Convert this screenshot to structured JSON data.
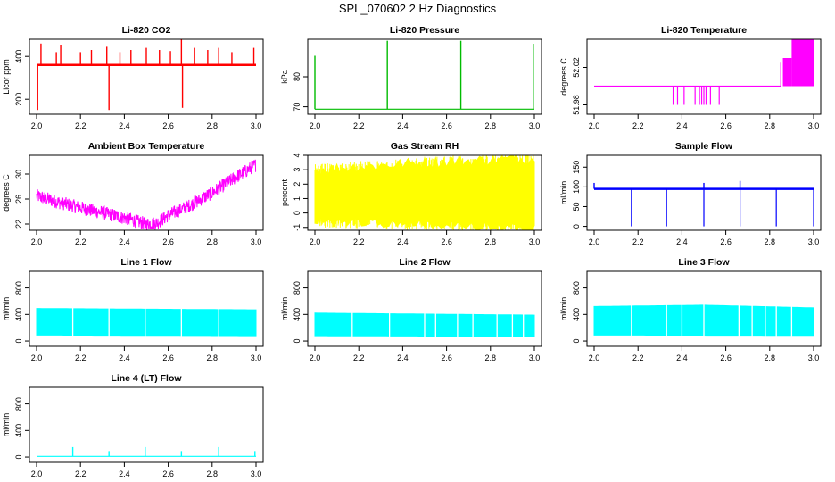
{
  "page_title": "SPL_070602  2 Hz Diagnostics",
  "chart_data": [
    {
      "type": "line",
      "title": "Li-820 CO2",
      "xlabel": "",
      "ylabel": "Licor ppm",
      "color": "#ff0000",
      "xlim": [
        2.0,
        3.0
      ],
      "ylim": [
        130,
        480
      ],
      "x_ticks": [
        2.0,
        2.2,
        2.4,
        2.6,
        2.8,
        3.0
      ],
      "y_ticks": [
        200,
        400
      ],
      "baseline": 360,
      "spikes": [
        {
          "x": 2.02,
          "y": 460
        },
        {
          "x": 2.09,
          "y": 420
        },
        {
          "x": 2.11,
          "y": 455
        },
        {
          "x": 2.2,
          "y": 420
        },
        {
          "x": 2.25,
          "y": 430
        },
        {
          "x": 2.32,
          "y": 445
        },
        {
          "x": 2.33,
          "y": 150
        },
        {
          "x": 2.38,
          "y": 420
        },
        {
          "x": 2.43,
          "y": 430
        },
        {
          "x": 2.5,
          "y": 440
        },
        {
          "x": 2.56,
          "y": 430
        },
        {
          "x": 2.61,
          "y": 425
        },
        {
          "x": 2.66,
          "y": 480
        },
        {
          "x": 2.665,
          "y": 160
        },
        {
          "x": 2.72,
          "y": 440
        },
        {
          "x": 2.78,
          "y": 430
        },
        {
          "x": 2.83,
          "y": 440
        },
        {
          "x": 2.89,
          "y": 420
        },
        {
          "x": 2.99,
          "y": 440
        },
        {
          "x": 2.005,
          "y": 150
        }
      ]
    },
    {
      "type": "line",
      "title": "Li-820 Pressure",
      "xlabel": "",
      "ylabel": "kPa",
      "color": "#00bb00",
      "xlim": [
        2.0,
        3.0
      ],
      "ylim": [
        67.5,
        92.5
      ],
      "x_ticks": [
        2.0,
        2.2,
        2.4,
        2.6,
        2.8,
        3.0
      ],
      "y_ticks": [
        70,
        80
      ],
      "baseline": 69.2,
      "spikes": [
        {
          "x": 2.0,
          "y": 87
        },
        {
          "x": 2.33,
          "y": 92
        },
        {
          "x": 2.665,
          "y": 92
        },
        {
          "x": 2.995,
          "y": 91
        }
      ]
    },
    {
      "type": "line",
      "title": "Li-820 Temperature",
      "xlabel": "",
      "ylabel": "degrees C",
      "color": "#ff00ff",
      "xlim": [
        2.0,
        3.0
      ],
      "ylim": [
        51.97,
        52.05
      ],
      "x_ticks": [
        2.0,
        2.2,
        2.4,
        2.6,
        2.8,
        3.0
      ],
      "y_ticks": [
        51.98,
        52.02
      ],
      "baseline": 52.0,
      "dips": [
        2.36,
        2.38,
        2.41,
        2.46,
        2.48,
        2.49,
        2.5,
        2.51,
        2.53,
        2.57
      ]
    },
    {
      "type": "line",
      "title": "Ambient Box Temperature",
      "xlabel": "",
      "ylabel": "degrees C",
      "color": "#ff00ff",
      "xlim": [
        2.0,
        3.0
      ],
      "ylim": [
        21,
        33
      ],
      "x_ticks": [
        2.0,
        2.2,
        2.4,
        2.6,
        2.8,
        3.0
      ],
      "y_ticks": [
        22,
        26,
        30
      ],
      "points": [
        {
          "x": 2.0,
          "y": 26.5
        },
        {
          "x": 2.1,
          "y": 25.5
        },
        {
          "x": 2.2,
          "y": 24.6
        },
        {
          "x": 2.3,
          "y": 23.8
        },
        {
          "x": 2.4,
          "y": 23.0
        },
        {
          "x": 2.5,
          "y": 22.0
        },
        {
          "x": 2.55,
          "y": 22.2
        },
        {
          "x": 2.6,
          "y": 23.4
        },
        {
          "x": 2.7,
          "y": 25.0
        },
        {
          "x": 2.8,
          "y": 27.0
        },
        {
          "x": 2.9,
          "y": 29.3
        },
        {
          "x": 3.0,
          "y": 31.5
        }
      ]
    },
    {
      "type": "area",
      "title": "Gas Stream RH",
      "xlabel": "",
      "ylabel": "percent",
      "color": "#ffff00",
      "xlim": [
        2.0,
        3.0
      ],
      "ylim": [
        -1.2,
        4
      ],
      "x_ticks": [
        2.0,
        2.2,
        2.4,
        2.6,
        2.8,
        3.0
      ],
      "y_ticks": [
        -1,
        0,
        1,
        2,
        3,
        4
      ],
      "upper": [
        {
          "x": 2.0,
          "y": 3.0
        },
        {
          "x": 2.5,
          "y": 3.5
        },
        {
          "x": 3.0,
          "y": 3.8
        }
      ],
      "lower": [
        {
          "x": 2.0,
          "y": -0.6
        },
        {
          "x": 2.5,
          "y": -0.8
        },
        {
          "x": 3.0,
          "y": -1.0
        }
      ]
    },
    {
      "type": "line",
      "title": "Sample Flow",
      "xlabel": "",
      "ylabel": "ml/min",
      "color": "#0000ff",
      "xlim": [
        2.0,
        3.0
      ],
      "ylim": [
        -10,
        180
      ],
      "x_ticks": [
        2.0,
        2.2,
        2.4,
        2.6,
        2.8,
        3.0
      ],
      "y_ticks": [
        0,
        50,
        100,
        150
      ],
      "baseline": 95,
      "dips": [
        2.17,
        2.33,
        2.5,
        2.665,
        2.83,
        3.0
      ],
      "spikes": [
        {
          "x": 2.0,
          "y": 110
        },
        {
          "x": 2.5,
          "y": 110
        },
        {
          "x": 2.665,
          "y": 115
        }
      ]
    },
    {
      "type": "area",
      "title": "Line 1 Flow",
      "xlabel": "",
      "ylabel": "ml/min",
      "color": "#00ffff",
      "xlim": [
        2.0,
        3.0
      ],
      "ylim": [
        -80,
        1050
      ],
      "x_ticks": [
        2.0,
        2.2,
        2.4,
        2.6,
        2.8,
        3.0
      ],
      "y_ticks": [
        0,
        400,
        800
      ],
      "upper": [
        {
          "x": 2.0,
          "y": 490
        },
        {
          "x": 3.0,
          "y": 470
        }
      ],
      "lower": [
        {
          "x": 2.0,
          "y": 90
        },
        {
          "x": 3.0,
          "y": 80
        }
      ],
      "gaps": [
        2.165,
        2.33,
        2.495,
        2.66,
        2.83
      ]
    },
    {
      "type": "area",
      "title": "Line 2 Flow",
      "xlabel": "",
      "ylabel": "ml/min",
      "color": "#00ffff",
      "xlim": [
        2.0,
        3.0
      ],
      "ylim": [
        -80,
        1050
      ],
      "x_ticks": [
        2.0,
        2.2,
        2.4,
        2.6,
        2.8,
        3.0
      ],
      "y_ticks": [
        0,
        400,
        800
      ],
      "upper": [
        {
          "x": 2.0,
          "y": 420
        },
        {
          "x": 3.0,
          "y": 390
        }
      ],
      "lower": [
        {
          "x": 2.0,
          "y": 80
        },
        {
          "x": 3.0,
          "y": 70
        }
      ],
      "gaps": [
        2.17,
        2.34,
        2.5,
        2.55,
        2.65,
        2.72,
        2.83,
        2.9,
        2.95
      ]
    },
    {
      "type": "area",
      "title": "Line 3 Flow",
      "xlabel": "",
      "ylabel": "ml/min",
      "color": "#00ffff",
      "xlim": [
        2.0,
        3.0
      ],
      "ylim": [
        -80,
        1050
      ],
      "x_ticks": [
        2.0,
        2.2,
        2.4,
        2.6,
        2.8,
        3.0
      ],
      "y_ticks": [
        0,
        400,
        800
      ],
      "upper": [
        {
          "x": 2.0,
          "y": 520
        },
        {
          "x": 2.5,
          "y": 540
        },
        {
          "x": 3.0,
          "y": 500
        }
      ],
      "lower": [
        {
          "x": 2.0,
          "y": 90
        },
        {
          "x": 3.0,
          "y": 85
        }
      ],
      "gaps": [
        2.17,
        2.33,
        2.4,
        2.5,
        2.66,
        2.72,
        2.78,
        2.83,
        2.9
      ]
    },
    {
      "type": "line",
      "title": "Line 4 (LT) Flow",
      "xlabel": "",
      "ylabel": "ml/min",
      "color": "#00ffff",
      "xlim": [
        2.0,
        3.0
      ],
      "ylim": [
        -80,
        1050
      ],
      "x_ticks": [
        2.0,
        2.2,
        2.4,
        2.6,
        2.8,
        3.0
      ],
      "y_ticks": [
        0,
        400,
        800
      ],
      "baseline": 10,
      "spikes": [
        {
          "x": 2.165,
          "y": 150
        },
        {
          "x": 2.33,
          "y": 90
        },
        {
          "x": 2.495,
          "y": 150
        },
        {
          "x": 2.66,
          "y": 90
        },
        {
          "x": 2.83,
          "y": 150
        },
        {
          "x": 2.995,
          "y": 90
        }
      ]
    }
  ]
}
